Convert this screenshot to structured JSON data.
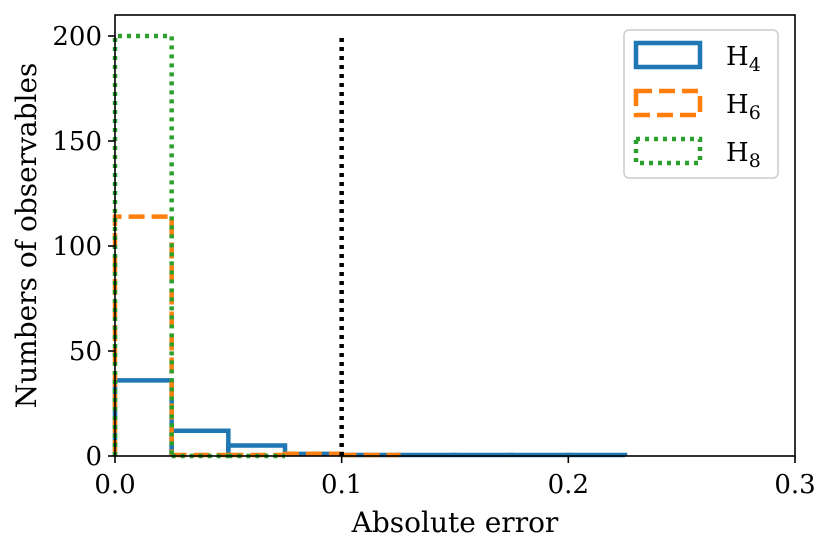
{
  "chart_data": {
    "type": "histogram",
    "xlabel": "Absolute error",
    "ylabel": "Numbers of observables",
    "xlim": [
      0,
      0.3
    ],
    "ylim": [
      0,
      210
    ],
    "xticks": [
      "0.0",
      "0.1",
      "0.2",
      "0.3"
    ],
    "yticks": [
      "0",
      "50",
      "100",
      "150",
      "200"
    ],
    "bin_width": 0.025,
    "threshold_line": {
      "x": 0.1,
      "ymax": 200,
      "style": "dotted",
      "color": "#000000"
    },
    "legend_position": "top-right",
    "series": [
      {
        "name": "H4",
        "name_base": "H",
        "name_sub": "4",
        "style": "solid",
        "color": "#1f77b4",
        "bins": [
          [
            0,
            0.025,
            36
          ],
          [
            0.025,
            0.05,
            12
          ],
          [
            0.05,
            0.075,
            5
          ],
          [
            0.075,
            0.1,
            1
          ],
          [
            0.1,
            0.125,
            0.5
          ],
          [
            0.125,
            0.15,
            0.5
          ],
          [
            0.15,
            0.175,
            0.5
          ],
          [
            0.175,
            0.2,
            0.5
          ],
          [
            0.2,
            0.225,
            0.5
          ]
        ]
      },
      {
        "name": "H6",
        "name_base": "H",
        "name_sub": "6",
        "style": "dashed",
        "color": "#ff7f0e",
        "bins": [
          [
            0,
            0.025,
            114
          ],
          [
            0.025,
            0.05,
            0.5
          ],
          [
            0.05,
            0.075,
            0.5
          ],
          [
            0.075,
            0.1,
            1
          ],
          [
            0.1,
            0.125,
            0.5
          ]
        ]
      },
      {
        "name": "H8",
        "name_base": "H",
        "name_sub": "8",
        "style": "dotted",
        "color": "#2ca02c",
        "bins": [
          [
            0,
            0.025,
            200
          ],
          [
            0.025,
            0.05,
            0
          ],
          [
            0.05,
            0.075,
            0
          ]
        ]
      }
    ]
  }
}
